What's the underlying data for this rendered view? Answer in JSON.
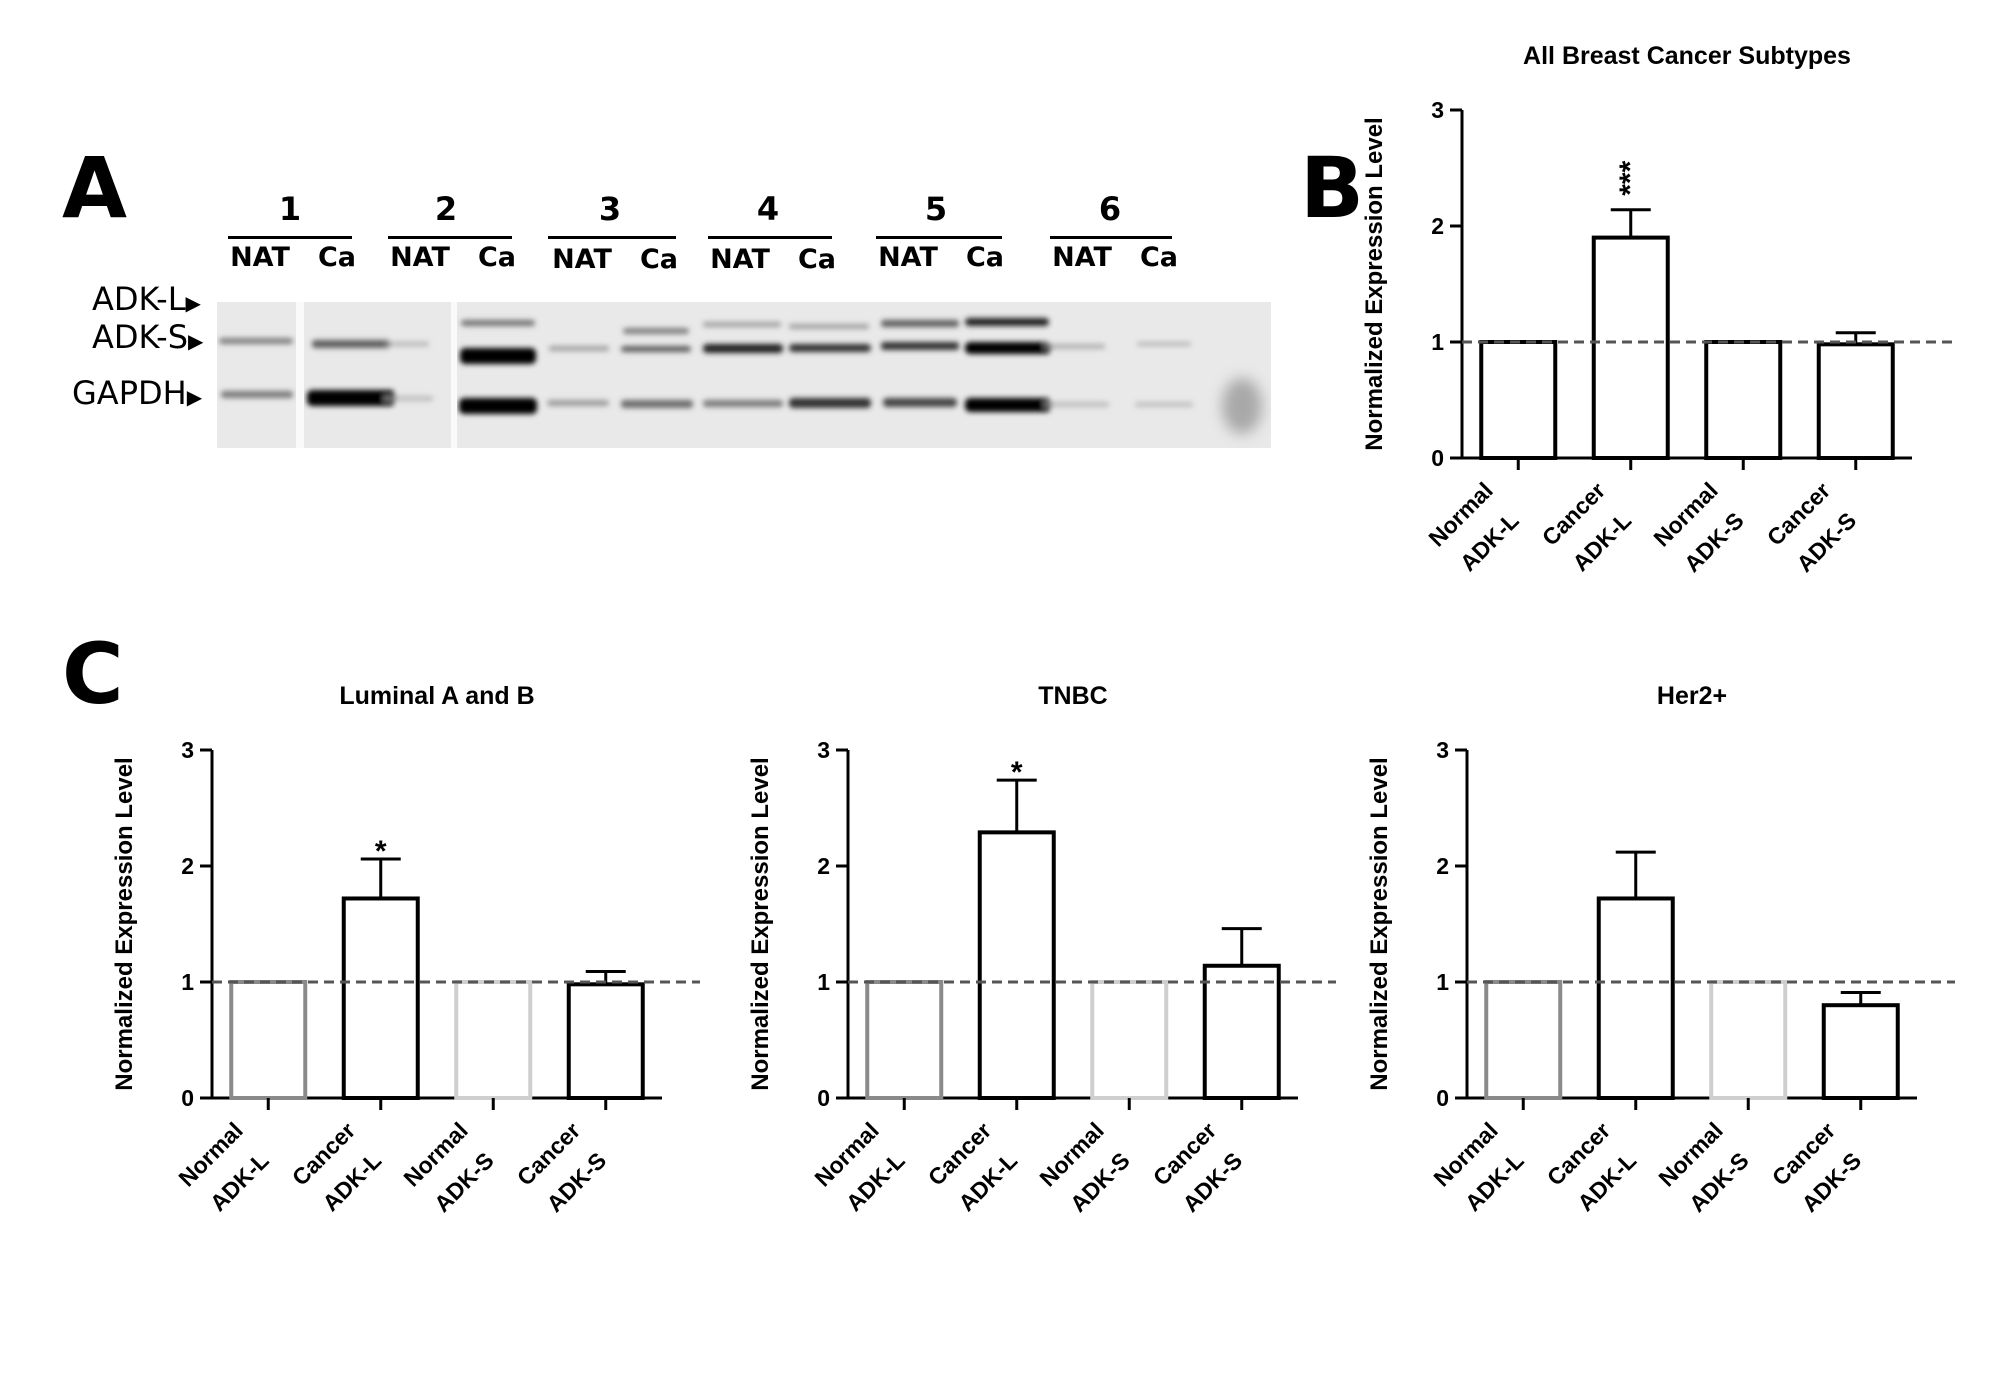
{
  "panels": {
    "a": "A",
    "b": "B",
    "c": "C"
  },
  "blot": {
    "lanes": [
      {
        "number": "1",
        "nat": "NAT",
        "ca": "Ca"
      },
      {
        "number": "2",
        "nat": "NAT",
        "ca": "Ca"
      },
      {
        "number": "3",
        "nat": "NAT",
        "ca": "Ca"
      },
      {
        "number": "4",
        "nat": "NAT",
        "ca": "Ca"
      },
      {
        "number": "5",
        "nat": "NAT",
        "ca": "Ca"
      },
      {
        "number": "6",
        "nat": "NAT",
        "ca": "Ca"
      }
    ],
    "band_labels": {
      "adk_l": "ADK-L",
      "adk_s": "ADK-S",
      "gapdh": "GAPDH"
    }
  },
  "chart_data": [
    {
      "type": "bar",
      "title": "All Breast Cancer Subtypes",
      "ylabel": "Normalized Expression Level",
      "ylim": [
        0,
        3
      ],
      "yticks": [
        "0",
        "1",
        "2",
        "3"
      ],
      "categories": [
        [
          "Normal",
          "ADK-L"
        ],
        [
          "Cancer",
          "ADK-L"
        ],
        [
          "Normal",
          "ADK-S"
        ],
        [
          "Cancer",
          "ADK-S"
        ]
      ],
      "values": [
        1.0,
        1.9,
        1.0,
        0.98
      ],
      "errors": [
        0,
        0.24,
        0,
        0.1
      ],
      "significance": [
        "",
        "***",
        "",
        ""
      ],
      "reference_line": 1,
      "bar_colors": [
        "#000000",
        "#000000",
        "#000000",
        "#000000"
      ]
    },
    {
      "type": "bar",
      "title": "Luminal A and B",
      "ylabel": "Normalized Expression Level",
      "ylim": [
        0,
        3
      ],
      "yticks": [
        "0",
        "1",
        "2",
        "3"
      ],
      "categories": [
        [
          "Normal",
          "ADK-L"
        ],
        [
          "Cancer",
          "ADK-L"
        ],
        [
          "Normal",
          "ADK-S"
        ],
        [
          "Cancer",
          "ADK-S"
        ]
      ],
      "values": [
        1.0,
        1.72,
        1.0,
        0.98
      ],
      "errors": [
        0,
        0.34,
        0,
        0.11
      ],
      "significance": [
        "",
        "*",
        "",
        ""
      ],
      "reference_line": 1,
      "bar_colors": [
        "#8a8a8a",
        "#000000",
        "#cfcfcf",
        "#000000"
      ]
    },
    {
      "type": "bar",
      "title": "TNBC",
      "ylabel": "Normalized Expression Level",
      "ylim": [
        0,
        3
      ],
      "yticks": [
        "0",
        "1",
        "2",
        "3"
      ],
      "categories": [
        [
          "Normal",
          "ADK-L"
        ],
        [
          "Cancer",
          "ADK-L"
        ],
        [
          "Normal",
          "ADK-S"
        ],
        [
          "Cancer",
          "ADK-S"
        ]
      ],
      "values": [
        1.0,
        2.29,
        1.0,
        1.14
      ],
      "errors": [
        0,
        0.45,
        0,
        0.32
      ],
      "significance": [
        "",
        "*",
        "",
        ""
      ],
      "reference_line": 1,
      "bar_colors": [
        "#8a8a8a",
        "#000000",
        "#cfcfcf",
        "#000000"
      ]
    },
    {
      "type": "bar",
      "title": "Her2+",
      "ylabel": "Normalized Expression Level",
      "ylim": [
        0,
        3
      ],
      "yticks": [
        "0",
        "1",
        "2",
        "3"
      ],
      "categories": [
        [
          "Normal",
          "ADK-L"
        ],
        [
          "Cancer",
          "ADK-L"
        ],
        [
          "Normal",
          "ADK-S"
        ],
        [
          "Cancer",
          "ADK-S"
        ]
      ],
      "values": [
        1.0,
        1.72,
        1.0,
        0.8
      ],
      "errors": [
        0,
        0.4,
        0,
        0.11
      ],
      "significance": [
        "",
        "",
        "",
        ""
      ],
      "reference_line": 1,
      "bar_colors": [
        "#8a8a8a",
        "#000000",
        "#cfcfcf",
        "#000000"
      ]
    }
  ]
}
